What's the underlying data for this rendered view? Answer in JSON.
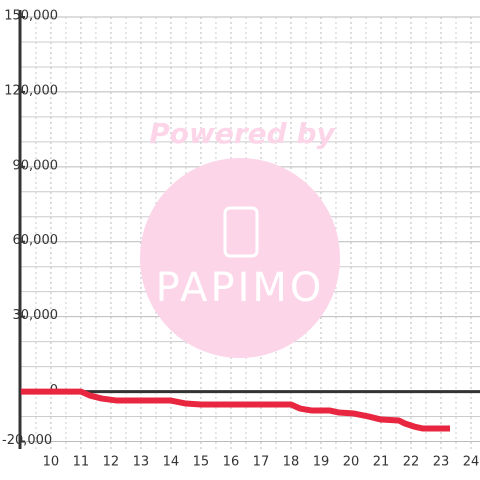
{
  "chart_data": {
    "type": "line",
    "watermark": {
      "top": "Powered by",
      "logo": "PAPIMO"
    },
    "x": [
      9,
      11,
      11.3,
      11.7,
      12.2,
      14,
      14.5,
      15,
      18,
      18.3,
      18.7,
      19.3,
      19.6,
      20.1,
      20.6,
      21,
      21.6,
      21.8,
      22.1,
      22.4,
      23.3
    ],
    "series": [
      {
        "color": "#e8263f",
        "values": [
          0,
          0,
          -1600,
          -2800,
          -3600,
          -3600,
          -4800,
          -5200,
          -5200,
          -6800,
          -7600,
          -7600,
          -8400,
          -8800,
          -10000,
          -11200,
          -11600,
          -12800,
          -14000,
          -14800,
          -14800
        ]
      }
    ],
    "xlim": [
      8.97,
      24.3
    ],
    "xticks": [
      10,
      11,
      12,
      13,
      14,
      15,
      16,
      17,
      18,
      19,
      20,
      21,
      22,
      23,
      24
    ],
    "x_minor_ticks": [
      9.5,
      10.5,
      11.5,
      12.5,
      13.5,
      14.5,
      15.5,
      16.5,
      17.5,
      18.5,
      19.5,
      20.5,
      21.5,
      22.5,
      23.5
    ],
    "ylim": [
      -23000,
      150000
    ],
    "yticks": [
      {
        "value": 150000,
        "label": "150,000"
      },
      {
        "value": 120000,
        "label": "120,000"
      },
      {
        "value": 90000,
        "label": "90,000"
      },
      {
        "value": 60000,
        "label": "60,000"
      },
      {
        "value": 30000,
        "label": "30,000"
      },
      0,
      {
        "value": -20000,
        "label": "-20,000"
      }
    ],
    "y_minor_ticks": [
      140000,
      130000,
      110000,
      100000,
      80000,
      70000,
      50000,
      40000,
      20000,
      10000,
      -10000
    ],
    "grid": true
  }
}
